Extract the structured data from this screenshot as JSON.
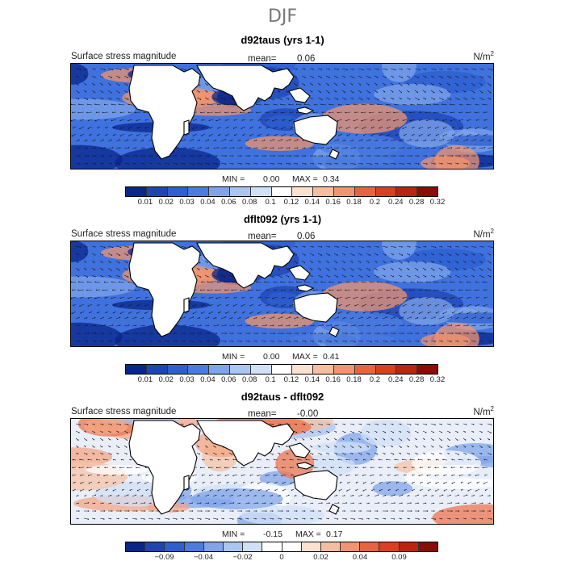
{
  "figure": {
    "season": "DJF"
  },
  "panels": [
    {
      "title": "d92taus (yrs 1-1)",
      "left_label": "Surface stress magnitude",
      "mean_label": "mean=",
      "mean_value": "0.06",
      "units": "N/m",
      "units_sup": "2",
      "min_label": "MIN =",
      "min_value": "0.00",
      "max_label": "MAX =",
      "max_value": "0.34",
      "colorbar_ticks": [
        "0.01",
        "0.02",
        "0.03",
        "0.04",
        "0.06",
        "0.08",
        "0.1",
        "0.12",
        "0.14",
        "0.16",
        "0.18",
        "0.2",
        "0.24",
        "0.28",
        "0.32"
      ]
    },
    {
      "title": "dflt092 (yrs 1-1)",
      "left_label": "Surface stress magnitude",
      "mean_label": "mean=",
      "mean_value": "0.06",
      "units": "N/m",
      "units_sup": "2",
      "min_label": "MIN =",
      "min_value": "0.00",
      "max_label": "MAX =",
      "max_value": "0.41",
      "colorbar_ticks": [
        "0.01",
        "0.02",
        "0.03",
        "0.04",
        "0.06",
        "0.08",
        "0.1",
        "0.12",
        "0.14",
        "0.16",
        "0.18",
        "0.2",
        "0.24",
        "0.28",
        "0.32"
      ]
    },
    {
      "title": "d92taus - dflt092",
      "left_label": "Surface stress magnitude",
      "mean_label": "mean=",
      "mean_value": "-0.00",
      "units": "N/m",
      "units_sup": "2",
      "min_label": "MIN =",
      "min_value": "-0.15",
      "max_label": "MAX =",
      "max_value": "0.17",
      "colorbar_ticks": [
        "−0.09",
        "−0.04",
        "−0.02",
        "0",
        "0.02",
        "0.04",
        "0.09"
      ]
    }
  ],
  "colors": {
    "seq_scale": [
      "#08268c",
      "#1f45b4",
      "#2e5fd0",
      "#4a7be0",
      "#7fa4ea",
      "#aac5f1",
      "#d0e0f7",
      "#ffffff",
      "#fbe1cf",
      "#f6bda0",
      "#f1946f",
      "#e8643e",
      "#d9401d",
      "#ba2510",
      "#8a0c05"
    ],
    "diff_scale": [
      "#08268c",
      "#1f45b4",
      "#2e5fd0",
      "#4a7be0",
      "#7fa4ea",
      "#aac5f1",
      "#d0e0f7",
      "#ffffff",
      "#ffffff",
      "#fbe1cf",
      "#f6bda0",
      "#f1946f",
      "#e8643e",
      "#d9401d",
      "#ba2510",
      "#8a0c05"
    ]
  }
}
